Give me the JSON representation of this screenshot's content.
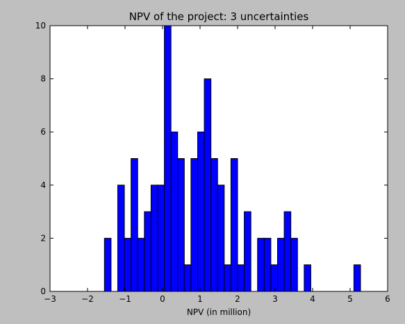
{
  "chart_data": {
    "type": "bar",
    "title": "NPV of the project: 3 uncertainties",
    "xlabel": "NPV (in million)",
    "ylabel": "",
    "xlim": [
      -3,
      6
    ],
    "ylim": [
      0,
      10
    ],
    "xticks": [
      -3,
      -2,
      -1,
      0,
      1,
      2,
      3,
      4,
      5,
      6
    ],
    "yticks": [
      0,
      2,
      4,
      6,
      8,
      10
    ],
    "bin_width": 0.1775,
    "bins": [
      {
        "x": -1.55,
        "count": 2
      },
      {
        "x": -1.195,
        "count": 4
      },
      {
        "x": -1.0175,
        "count": 2
      },
      {
        "x": -0.84,
        "count": 5
      },
      {
        "x": -0.6625,
        "count": 2
      },
      {
        "x": -0.485,
        "count": 3
      },
      {
        "x": -0.3075,
        "count": 4
      },
      {
        "x": -0.13,
        "count": 4
      },
      {
        "x": 0.0475,
        "count": 10
      },
      {
        "x": 0.225,
        "count": 6
      },
      {
        "x": 0.4025,
        "count": 5
      },
      {
        "x": 0.58,
        "count": 1
      },
      {
        "x": 0.7575,
        "count": 5
      },
      {
        "x": 0.935,
        "count": 6
      },
      {
        "x": 1.1125,
        "count": 8
      },
      {
        "x": 1.29,
        "count": 5
      },
      {
        "x": 1.4675,
        "count": 4
      },
      {
        "x": 1.645,
        "count": 1
      },
      {
        "x": 1.8225,
        "count": 5
      },
      {
        "x": 2.0,
        "count": 1
      },
      {
        "x": 2.1775,
        "count": 3
      },
      {
        "x": 2.5325,
        "count": 2
      },
      {
        "x": 2.71,
        "count": 2
      },
      {
        "x": 2.8875,
        "count": 1
      },
      {
        "x": 3.065,
        "count": 2
      },
      {
        "x": 3.2425,
        "count": 3
      },
      {
        "x": 3.42,
        "count": 2
      },
      {
        "x": 3.775,
        "count": 1
      },
      {
        "x": 5.1,
        "count": 1
      }
    ],
    "grid": false,
    "colors": {
      "bar_fill": "#0000ff",
      "bar_edge": "#000000",
      "plot_background": "#ffffff",
      "figure_background": "#bfbfbf"
    }
  }
}
